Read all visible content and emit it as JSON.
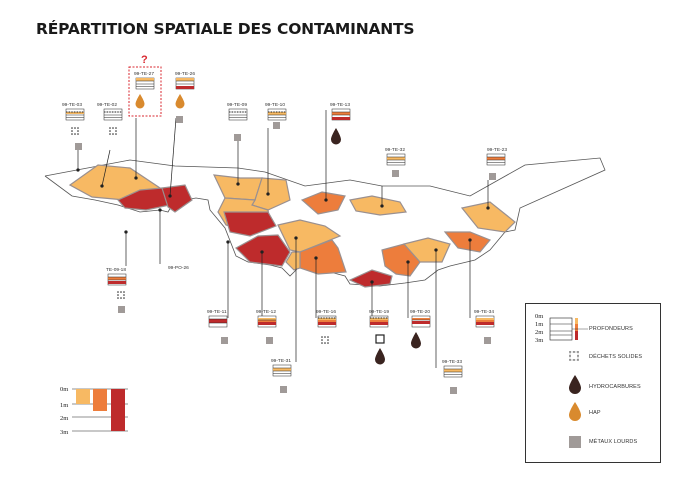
{
  "title": "RÉPARTITION SPATIALE DES CONTAMINANTS",
  "question_mark": "?",
  "colors": {
    "light": "#f7b963",
    "medium": "#ed7d3c",
    "dark": "#be2b2c",
    "hap": "#d98a2e",
    "hydrocarbures": "#3a2420",
    "metaux": "#a09a98",
    "warning": "#d8272f"
  },
  "sample_labels": {
    "te03": "99-TE-03",
    "te02": "99-TE-02",
    "te27": "99-TE-27",
    "te26": "99-TE-26",
    "te09": "99-TE-09",
    "te10": "99-TE-10",
    "te13": "99-TE-13",
    "te32": "99-TE-32",
    "te23": "99-TE-23",
    "te18": "TE-09-18",
    "po26": "99-PO-26",
    "te11": "99-TE-11",
    "te12": "99-TE-12",
    "te16": "99-TE-16",
    "te19": "99-TE-19",
    "te20": "99-TE-20",
    "te34": "99-TE-34",
    "te31": "99-TE-31",
    "te33": "99-TE-33"
  },
  "legend": {
    "depths": [
      "0m",
      "1m",
      "2m",
      "3m"
    ],
    "profondeurs": "PROFONDEURS",
    "dechets": "DÉCHETS SOLIDES",
    "hydrocarbures": "HYDROCARBURES",
    "hap": "HAP",
    "metaux": "MÉTAUX LOURDS"
  },
  "depth_scale": {
    "labels": [
      "0m",
      "1m",
      "2m",
      "3m"
    ]
  }
}
